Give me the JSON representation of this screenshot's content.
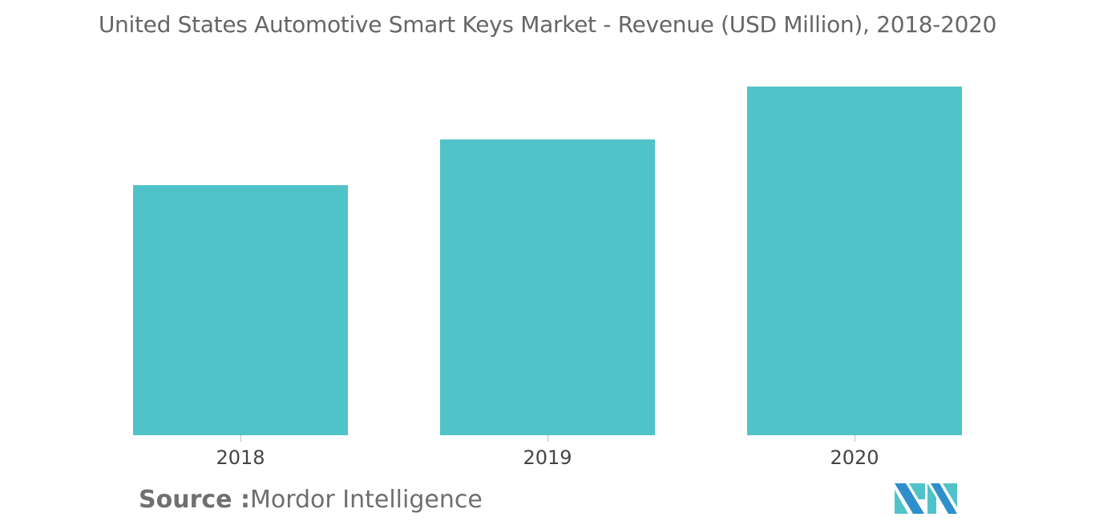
{
  "chart_data": {
    "type": "bar",
    "title": "United States Automotive Smart Keys Market - Revenue (USD Million), 2018-2020",
    "categories": [
      "2018",
      "2019",
      "2020"
    ],
    "values": [
      71.7,
      84.8,
      100
    ],
    "value_note": "No y-axis or data labels shown; values are relative bar heights (2020 = 100).",
    "xlabel": "",
    "ylabel": "",
    "grid": false,
    "legend": null,
    "bar_color": "#50c3c9"
  },
  "title": "United States Automotive Smart Keys Market - Revenue (USD Million), 2018-2020",
  "source": {
    "label": "Source :",
    "text": "Mordor Intelligence"
  },
  "logo": {
    "icon": "mordor-intelligence-logo-icon",
    "colors": [
      "#2e8fcc",
      "#50c3c9"
    ]
  }
}
